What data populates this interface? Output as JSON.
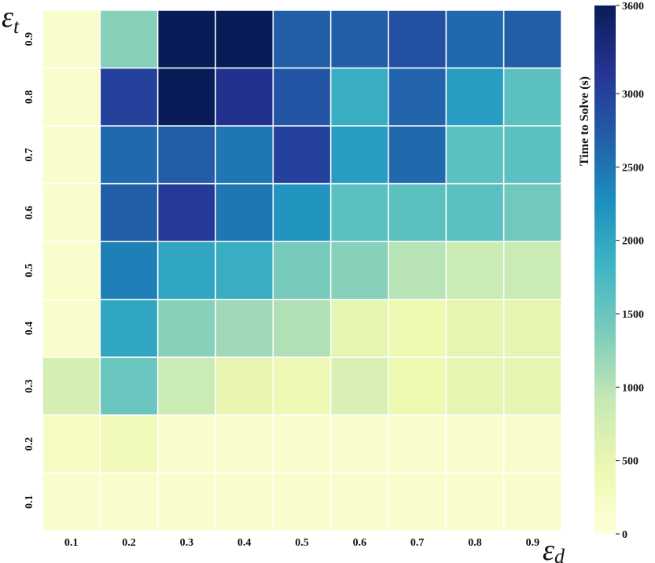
{
  "chart_data": {
    "type": "heatmap",
    "xlabel": "ε",
    "xlabel_sub": "d",
    "ylabel": "ε",
    "ylabel_sub": "t",
    "x_categories": [
      "0.1",
      "0.2",
      "0.3",
      "0.4",
      "0.5",
      "0.6",
      "0.7",
      "0.8",
      "0.9"
    ],
    "y_categories": [
      "0.9",
      "0.8",
      "0.7",
      "0.6",
      "0.5",
      "0.4",
      "0.3",
      "0.2",
      "0.1"
    ],
    "values": [
      [
        150,
        1300,
        3600,
        3600,
        2700,
        2700,
        2850,
        2600,
        2700
      ],
      [
        150,
        3000,
        3600,
        3200,
        2800,
        1900,
        2650,
        2100,
        1600
      ],
      [
        150,
        2600,
        2700,
        2500,
        3000,
        2100,
        2600,
        1600,
        1600
      ],
      [
        150,
        2700,
        3100,
        2500,
        2200,
        1600,
        1600,
        1600,
        1450
      ],
      [
        150,
        2400,
        2000,
        1900,
        1400,
        1300,
        1000,
        850,
        850
      ],
      [
        150,
        2000,
        1300,
        1150,
        1050,
        550,
        450,
        550,
        550
      ],
      [
        750,
        1500,
        850,
        500,
        400,
        700,
        450,
        550,
        550
      ],
      [
        250,
        350,
        150,
        150,
        150,
        150,
        150,
        150,
        150
      ],
      [
        150,
        150,
        150,
        150,
        150,
        150,
        150,
        150,
        150
      ]
    ],
    "colorbar": {
      "label": "Time to Solve (s)",
      "ticks": [
        "0",
        "500",
        "1000",
        "1500",
        "2000",
        "2500",
        "3000",
        "3600"
      ],
      "min": 0,
      "max": 3600,
      "colormap": "YlGnBu"
    },
    "grid": true
  }
}
